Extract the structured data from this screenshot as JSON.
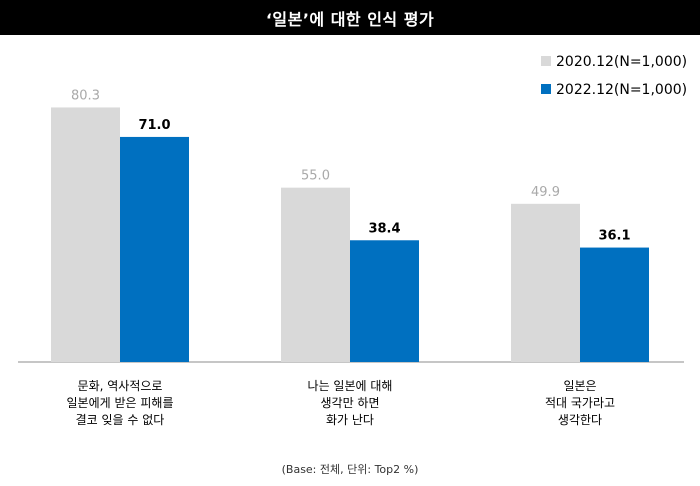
{
  "chart_data": {
    "type": "bar",
    "title": "‘일본’에 대한 인식 평가",
    "categories": [
      [
        "문화, 역사적으로",
        "일본에게 받은 피해를",
        "결코 잊을 수 없다"
      ],
      [
        "나는 일본에 대해",
        "생각만 하면",
        "화가 난다"
      ],
      [
        "일본은",
        "적대 국가라고",
        "생각한다"
      ]
    ],
    "series": [
      {
        "name": "2020.12(N=1,000)",
        "values": [
          80.3,
          55.0,
          49.9
        ],
        "labels": [
          "80.3",
          "55.0",
          "49.9"
        ],
        "color": "#d9d9d9"
      },
      {
        "name": "2022.12(N=1,000)",
        "values": [
          71.0,
          38.4,
          36.1
        ],
        "labels": [
          "71.0",
          "38.4",
          "36.1"
        ],
        "color": "#0070c0"
      }
    ],
    "ylim": [
      0,
      100
    ],
    "grid": false,
    "legend_position": "top-right",
    "footnote": "(Base: 전체, 단위: Top2 %)"
  }
}
